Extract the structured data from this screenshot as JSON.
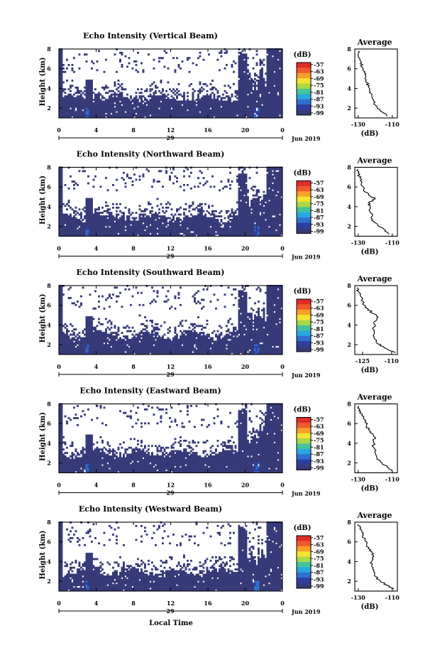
{
  "figure": {
    "x_label": "Local Time"
  },
  "chart_data": [
    {
      "type": "heatmap",
      "title": "Echo Intensity (Vertical Beam)",
      "ylabel": "Height (km)",
      "x_ticks": [
        "0",
        "4",
        "8",
        "12",
        "16",
        "20",
        "0"
      ],
      "date_label": "29",
      "month_label": "Jun 2019",
      "x_range_hours": [
        0,
        24
      ],
      "ylim": [
        1,
        8
      ],
      "y_ticks": [
        "2",
        "4",
        "6",
        "8"
      ],
      "colorbar": {
        "unit": "(dB)",
        "ticks": [
          "-57",
          "-63",
          "-69",
          "-75",
          "-81",
          "-87",
          "-93",
          "-99"
        ]
      },
      "profile": {
        "title": "Average",
        "xlabel": "(dB)",
        "x_ticks": [
          "-130",
          "-110"
        ],
        "xlim": [
          -132,
          -107
        ],
        "y_ticks": [
          "2",
          "4",
          "6",
          "8"
        ],
        "points": [
          [
            -113,
            1.2
          ],
          [
            -115,
            1.5
          ],
          [
            -118,
            1.9
          ],
          [
            -120,
            2.3
          ],
          [
            -121,
            2.7
          ],
          [
            -122,
            3.2
          ],
          [
            -123,
            3.7
          ],
          [
            -124,
            4.2
          ],
          [
            -125,
            4.6
          ],
          [
            -126,
            5.0
          ],
          [
            -126,
            5.4
          ],
          [
            -127,
            5.8
          ],
          [
            -128,
            6.2
          ],
          [
            -128,
            6.6
          ],
          [
            -129,
            7.0
          ],
          [
            -130,
            7.4
          ],
          [
            -130,
            7.8
          ]
        ]
      }
    },
    {
      "type": "heatmap",
      "title": "Echo Intensity (Northward Beam)",
      "ylabel": "Height (km)",
      "x_ticks": [
        "0",
        "4",
        "8",
        "12",
        "16",
        "20",
        "0"
      ],
      "date_label": "29",
      "month_label": "Jun 2019",
      "x_range_hours": [
        0,
        24
      ],
      "ylim": [
        1,
        8
      ],
      "y_ticks": [
        "2",
        "4",
        "6",
        "8"
      ],
      "colorbar": {
        "unit": "(dB)",
        "ticks": [
          "-57",
          "-63",
          "-69",
          "-75",
          "-81",
          "-87",
          "-93",
          "-99"
        ]
      },
      "profile": {
        "title": "Average",
        "xlabel": "(dB)",
        "x_ticks": [
          "-130",
          "-110"
        ],
        "xlim": [
          -132,
          -107
        ],
        "y_ticks": [
          "2",
          "4",
          "6",
          "8"
        ],
        "points": [
          [
            -112,
            1.2
          ],
          [
            -114,
            1.6
          ],
          [
            -118,
            2.0
          ],
          [
            -121,
            2.5
          ],
          [
            -122,
            3.0
          ],
          [
            -123,
            3.5
          ],
          [
            -123,
            4.0
          ],
          [
            -124,
            4.4
          ],
          [
            -120,
            4.8
          ],
          [
            -123,
            5.1
          ],
          [
            -126,
            5.5
          ],
          [
            -127,
            6.0
          ],
          [
            -128,
            6.4
          ],
          [
            -129,
            6.9
          ],
          [
            -130,
            7.4
          ],
          [
            -130,
            7.8
          ]
        ]
      }
    },
    {
      "type": "heatmap",
      "title": "Echo Intensity (Southward Beam)",
      "ylabel": "Height (km)",
      "x_ticks": [
        "0",
        "4",
        "8",
        "12",
        "16",
        "20",
        "0"
      ],
      "date_label": "29",
      "month_label": "Jun 2019",
      "x_range_hours": [
        0,
        24
      ],
      "ylim": [
        1,
        8
      ],
      "y_ticks": [
        "2",
        "4",
        "6",
        "8"
      ],
      "colorbar": {
        "unit": "(dB)",
        "ticks": [
          "-57",
          "-63",
          "-69",
          "-75",
          "-81",
          "-87",
          "-93",
          "-99"
        ]
      },
      "profile": {
        "title": "Average",
        "xlabel": "(dB)",
        "x_ticks": [
          "-125",
          "-110"
        ],
        "xlim": [
          -129,
          -107
        ],
        "y_ticks": [
          "2",
          "4",
          "6",
          "8"
        ],
        "points": [
          [
            -108,
            1.2
          ],
          [
            -112,
            1.5
          ],
          [
            -116,
            1.9
          ],
          [
            -118,
            2.3
          ],
          [
            -119,
            2.8
          ],
          [
            -119,
            3.3
          ],
          [
            -119,
            3.8
          ],
          [
            -119,
            4.3
          ],
          [
            -117,
            4.8
          ],
          [
            -120,
            5.2
          ],
          [
            -122,
            5.6
          ],
          [
            -124,
            6.0
          ],
          [
            -125,
            6.4
          ],
          [
            -126,
            6.9
          ],
          [
            -127,
            7.4
          ],
          [
            -128,
            7.8
          ]
        ]
      }
    },
    {
      "type": "heatmap",
      "title": "Echo Intensity (Eastward Beam)",
      "ylabel": "Height (km)",
      "x_ticks": [
        "0",
        "4",
        "8",
        "12",
        "16",
        "20",
        "0"
      ],
      "date_label": "29",
      "month_label": "Jun 2019",
      "x_range_hours": [
        0,
        24
      ],
      "ylim": [
        1,
        8
      ],
      "y_ticks": [
        "2",
        "4",
        "6",
        "8"
      ],
      "colorbar": {
        "unit": "(dB)",
        "ticks": [
          "-57",
          "-63",
          "-69",
          "-75",
          "-81",
          "-87",
          "-93",
          "-99"
        ]
      },
      "profile": {
        "title": "Average",
        "xlabel": "(dB)",
        "x_ticks": [
          "-130",
          "-110"
        ],
        "xlim": [
          -132,
          -107
        ],
        "y_ticks": [
          "2",
          "4",
          "6",
          "8"
        ],
        "points": [
          [
            -110,
            1.2
          ],
          [
            -113,
            1.6
          ],
          [
            -116,
            2.0
          ],
          [
            -119,
            2.5
          ],
          [
            -120,
            3.0
          ],
          [
            -121,
            3.6
          ],
          [
            -121,
            4.2
          ],
          [
            -120,
            4.6
          ],
          [
            -122,
            5.0
          ],
          [
            -124,
            5.4
          ],
          [
            -125,
            5.8
          ],
          [
            -126,
            6.2
          ],
          [
            -127,
            6.6
          ],
          [
            -128,
            7.0
          ],
          [
            -129,
            7.4
          ],
          [
            -130,
            7.8
          ]
        ]
      }
    },
    {
      "type": "heatmap",
      "title": "Echo Intensity (Westward Beam)",
      "ylabel": "Height (km)",
      "x_ticks": [
        "0",
        "4",
        "8",
        "12",
        "16",
        "20",
        "0"
      ],
      "date_label": "29",
      "month_label": "Jun 2019",
      "x_range_hours": [
        0,
        24
      ],
      "ylim": [
        1,
        8
      ],
      "y_ticks": [
        "2",
        "4",
        "6",
        "8"
      ],
      "colorbar": {
        "unit": "(dB)",
        "ticks": [
          "-57",
          "-63",
          "-69",
          "-75",
          "-81",
          "-87",
          "-93",
          "-99"
        ]
      },
      "profile": {
        "title": "Average",
        "xlabel": "(dB)",
        "x_ticks": [
          "-130",
          "-110"
        ],
        "xlim": [
          -132,
          -107
        ],
        "y_ticks": [
          "2",
          "4",
          "6",
          "8"
        ],
        "points": [
          [
            -109,
            1.2
          ],
          [
            -113,
            1.6
          ],
          [
            -117,
            2.0
          ],
          [
            -120,
            2.5
          ],
          [
            -121,
            3.0
          ],
          [
            -122,
            3.5
          ],
          [
            -122,
            4.0
          ],
          [
            -121,
            4.5
          ],
          [
            -122,
            4.9
          ],
          [
            -124,
            5.3
          ],
          [
            -125,
            5.8
          ],
          [
            -126,
            6.2
          ],
          [
            -127,
            6.7
          ],
          [
            -128,
            7.1
          ],
          [
            -129,
            7.5
          ],
          [
            -130,
            7.8
          ]
        ]
      }
    }
  ]
}
